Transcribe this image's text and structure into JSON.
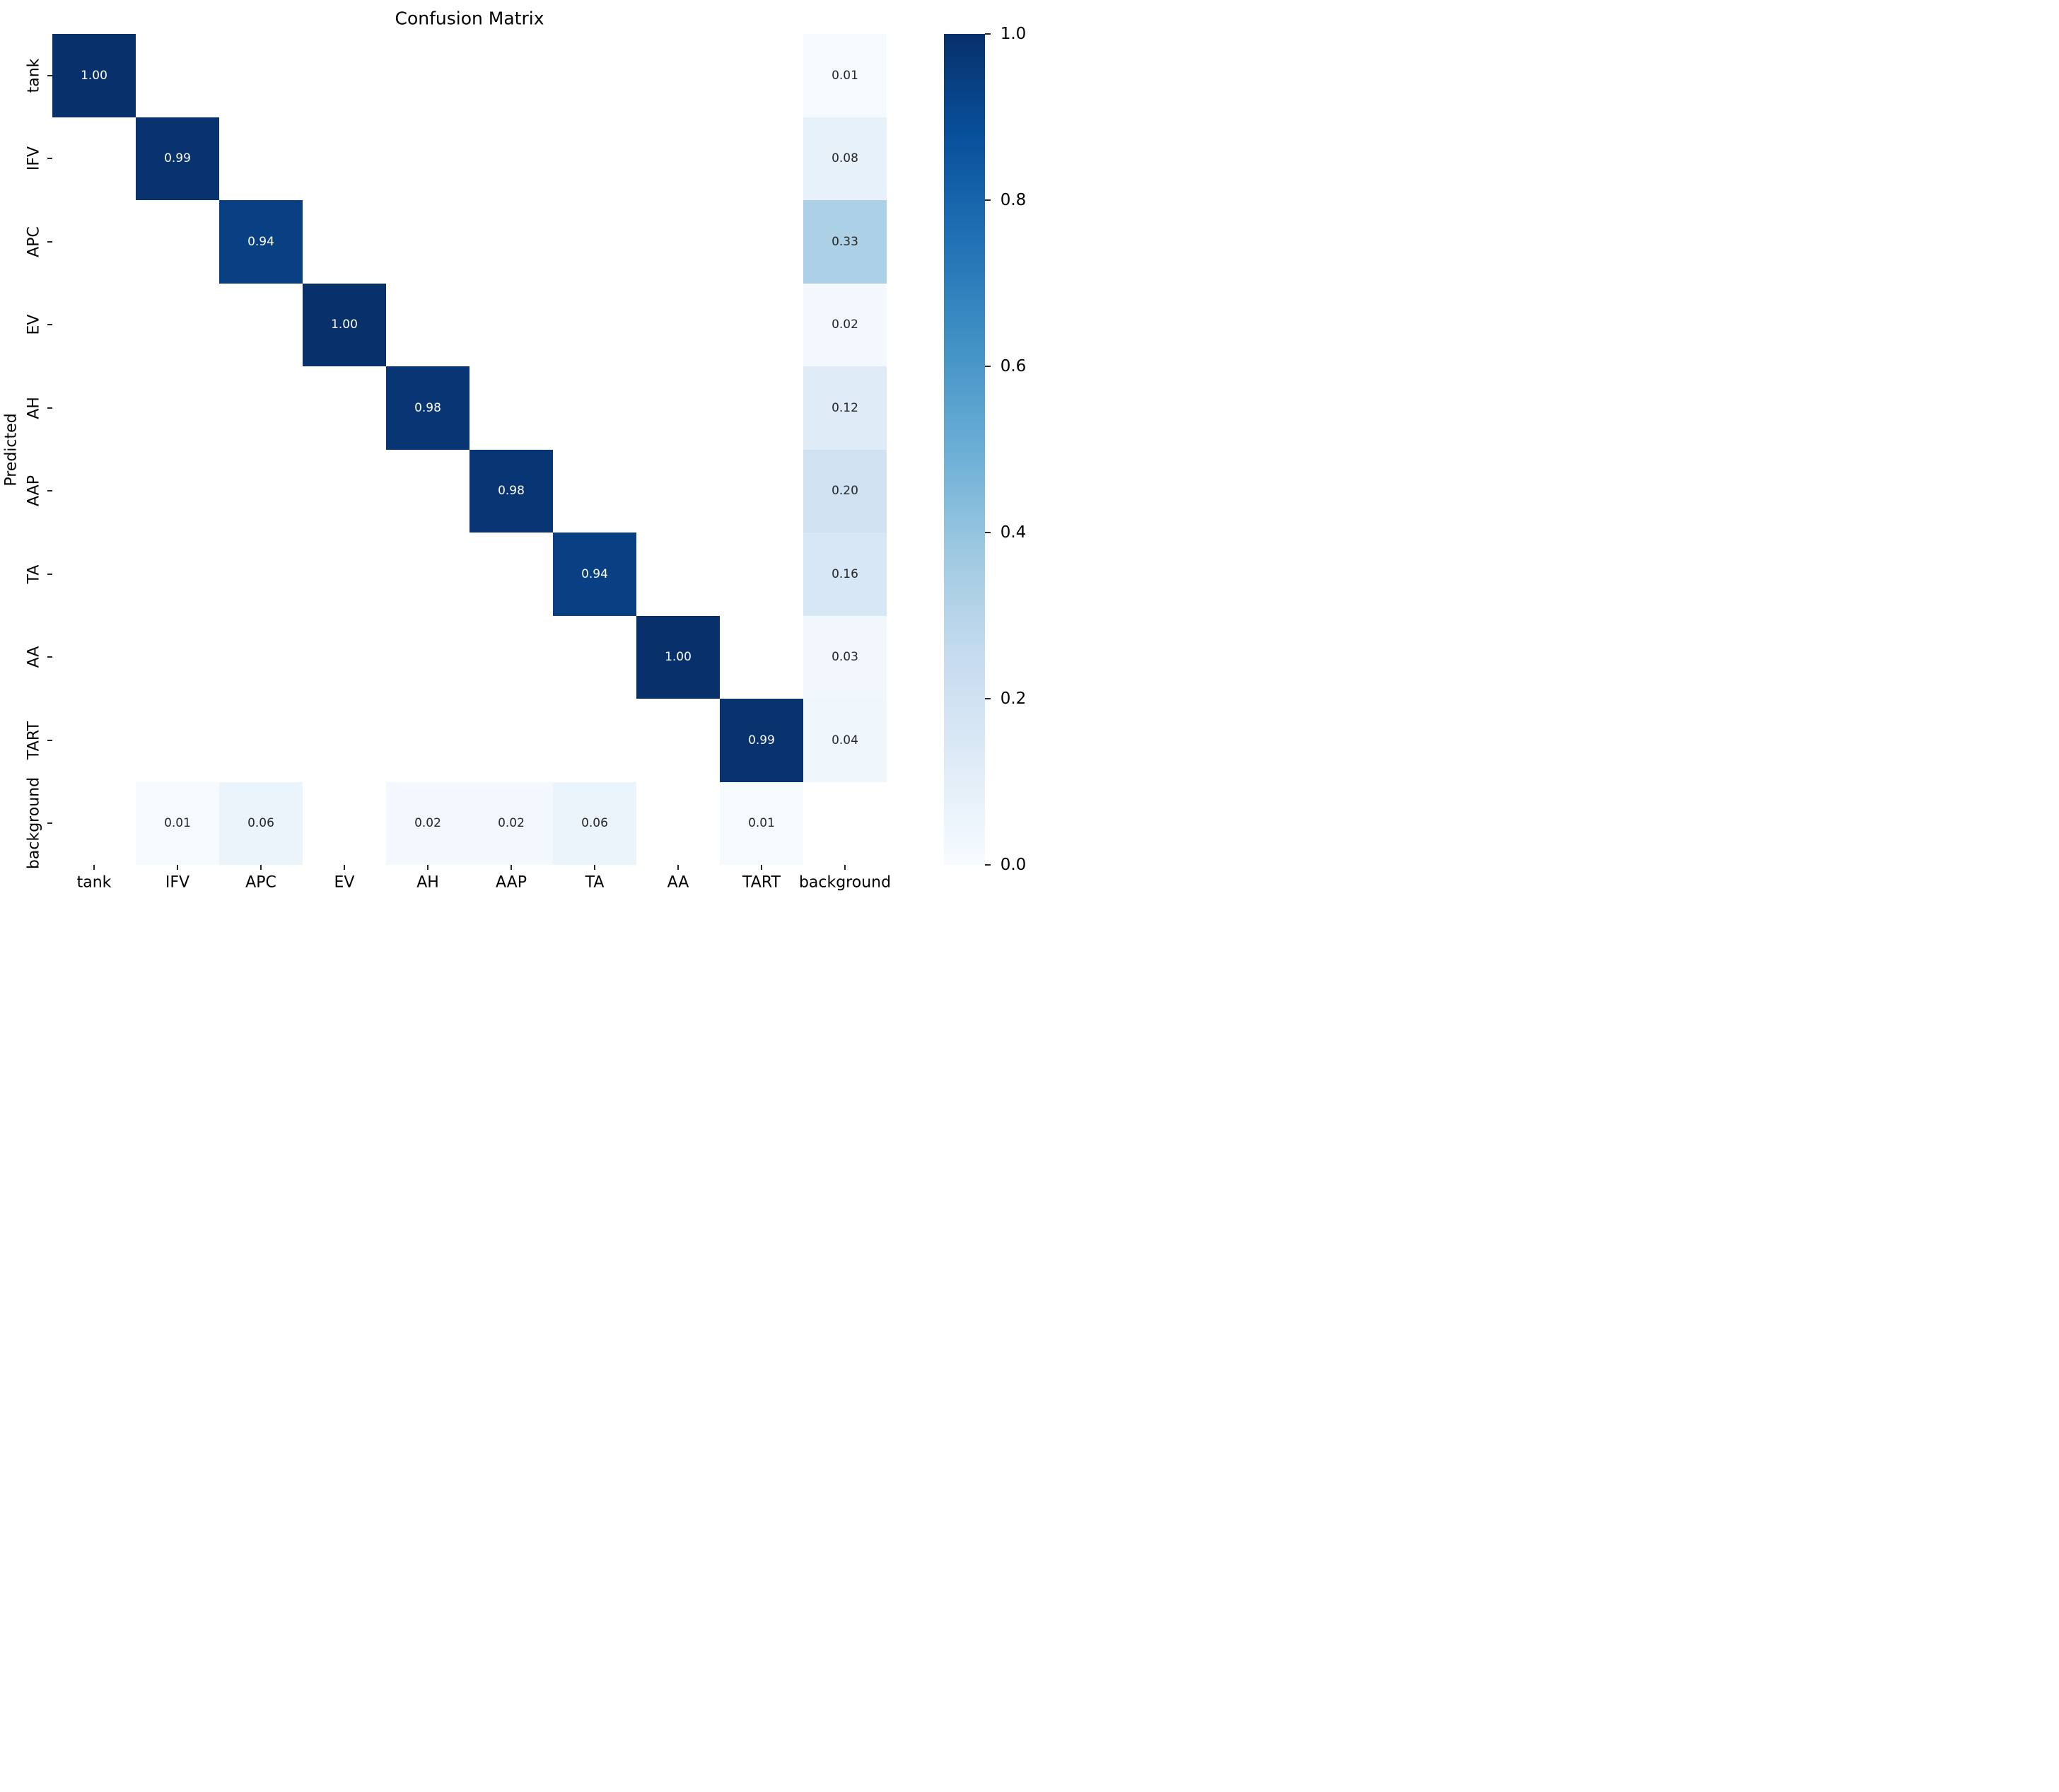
{
  "chart_data": {
    "type": "heatmap",
    "title": "Confusion Matrix",
    "xlabel": "",
    "ylabel": "Predicted",
    "categories": [
      "tank",
      "IFV",
      "APC",
      "EV",
      "AH",
      "AAP",
      "TA",
      "AA",
      "TART",
      "background"
    ],
    "x_tick_labels": [
      "tank",
      "IFV",
      "APC",
      "EV",
      "AH",
      "AAP",
      "TA",
      "AA",
      "TART",
      "background"
    ],
    "y_tick_labels": [
      "tank",
      "IFV",
      "APC",
      "EV",
      "AH",
      "AAP",
      "TA",
      "AA",
      "TART",
      "background"
    ],
    "matrix": [
      [
        1.0,
        null,
        null,
        null,
        null,
        null,
        null,
        null,
        null,
        0.01
      ],
      [
        null,
        0.99,
        null,
        null,
        null,
        null,
        null,
        null,
        null,
        0.08
      ],
      [
        null,
        null,
        0.94,
        null,
        null,
        null,
        null,
        null,
        null,
        0.33
      ],
      [
        null,
        null,
        null,
        1.0,
        null,
        null,
        null,
        null,
        null,
        0.02
      ],
      [
        null,
        null,
        null,
        null,
        0.98,
        null,
        null,
        null,
        null,
        0.12
      ],
      [
        null,
        null,
        null,
        null,
        null,
        0.98,
        null,
        null,
        null,
        0.2
      ],
      [
        null,
        null,
        null,
        null,
        null,
        null,
        0.94,
        null,
        null,
        0.16
      ],
      [
        null,
        null,
        null,
        null,
        null,
        null,
        null,
        1.0,
        null,
        0.03
      ],
      [
        null,
        null,
        null,
        null,
        null,
        null,
        null,
        null,
        0.99,
        0.04
      ],
      [
        null,
        0.01,
        0.06,
        null,
        0.02,
        0.02,
        0.06,
        null,
        0.01,
        null
      ]
    ],
    "annot_format": "0.00",
    "vmin": 0.0,
    "vmax": 1.0,
    "colorbar_tick_labels": [
      "0.0",
      "0.2",
      "0.4",
      "0.6",
      "0.8",
      "1.0"
    ],
    "colorbar_tick_values": [
      0.0,
      0.2,
      0.4,
      0.6,
      0.8,
      1.0
    ],
    "colormap_name": "Blues",
    "colormap_stops": [
      [
        0.0,
        "#f7fbff"
      ],
      [
        0.125,
        "#deebf7"
      ],
      [
        0.25,
        "#c6dbef"
      ],
      [
        0.375,
        "#9ecae1"
      ],
      [
        0.5,
        "#6baed6"
      ],
      [
        0.625,
        "#4292c6"
      ],
      [
        0.75,
        "#2171b5"
      ],
      [
        0.875,
        "#08519c"
      ],
      [
        1.0,
        "#08306b"
      ]
    ],
    "annot_color_dark_cells": "#ffffff",
    "annot_color_light_cells": "#262626",
    "background_color": "#ffffff",
    "text_color": "#000000",
    "grid": false,
    "legend_position": "colorbar-right"
  }
}
